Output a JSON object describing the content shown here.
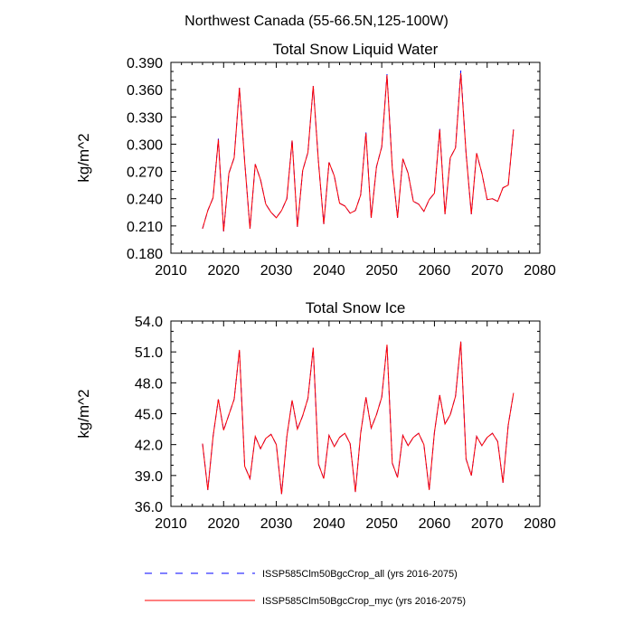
{
  "suptitle": "Northwest Canada (55-66.5N,125-100W)",
  "legend": [
    {
      "label": "ISSP585Clm50BgcCrop_all (yrs 2016-2075)",
      "color": "#0000ff",
      "dash": true
    },
    {
      "label": "ISSP585Clm50BgcCrop_myc (yrs 2016-2075)",
      "color": "#ff0000",
      "dash": false
    }
  ],
  "chart_data": [
    {
      "type": "line",
      "title": "Total Snow Liquid Water",
      "xlabel": "",
      "ylabel": "kg/m^2",
      "xlim": [
        2010,
        2080
      ],
      "ylim": [
        0.18,
        0.39
      ],
      "xticks": [
        "2010",
        "2020",
        "2030",
        "2040",
        "2050",
        "2060",
        "2070",
        "2080"
      ],
      "yticks": [
        "0.180",
        "0.210",
        "0.240",
        "0.270",
        "0.300",
        "0.330",
        "0.360",
        "0.390"
      ],
      "x": [
        2016,
        2017,
        2018,
        2019,
        2020,
        2021,
        2022,
        2023,
        2024,
        2025,
        2026,
        2027,
        2028,
        2029,
        2030,
        2031,
        2032,
        2033,
        2034,
        2035,
        2036,
        2037,
        2038,
        2039,
        2040,
        2041,
        2042,
        2043,
        2044,
        2045,
        2046,
        2047,
        2048,
        2049,
        2050,
        2051,
        2052,
        2053,
        2054,
        2055,
        2056,
        2057,
        2058,
        2059,
        2060,
        2061,
        2062,
        2063,
        2064,
        2065,
        2066,
        2067,
        2068,
        2069,
        2070,
        2071,
        2072,
        2073,
        2074,
        2075
      ],
      "series": [
        {
          "name": "ISSP585Clm50BgcCrop_all (yrs 2016-2075)",
          "color": "#0000ff",
          "dash": true,
          "values": [
            0.207,
            0.227,
            0.241,
            0.306,
            0.204,
            0.268,
            0.285,
            0.362,
            0.281,
            0.207,
            0.278,
            0.261,
            0.234,
            0.225,
            0.219,
            0.227,
            0.24,
            0.305,
            0.209,
            0.271,
            0.291,
            0.364,
            0.28,
            0.212,
            0.28,
            0.265,
            0.235,
            0.232,
            0.224,
            0.227,
            0.244,
            0.313,
            0.219,
            0.275,
            0.297,
            0.377,
            0.274,
            0.219,
            0.284,
            0.268,
            0.237,
            0.234,
            0.226,
            0.239,
            0.246,
            0.317,
            0.223,
            0.285,
            0.296,
            0.381,
            0.29,
            0.223,
            0.29,
            0.268,
            0.239,
            0.24,
            0.237,
            0.252,
            0.255,
            0.316
          ]
        },
        {
          "name": "ISSP585Clm50BgcCrop_myc (yrs 2016-2075)",
          "color": "#ff0000",
          "dash": false,
          "values": [
            0.207,
            0.227,
            0.241,
            0.305,
            0.204,
            0.268,
            0.285,
            0.362,
            0.28,
            0.207,
            0.278,
            0.261,
            0.234,
            0.225,
            0.219,
            0.227,
            0.24,
            0.304,
            0.209,
            0.271,
            0.291,
            0.364,
            0.28,
            0.212,
            0.28,
            0.265,
            0.235,
            0.232,
            0.224,
            0.227,
            0.244,
            0.312,
            0.219,
            0.275,
            0.297,
            0.376,
            0.274,
            0.219,
            0.284,
            0.268,
            0.237,
            0.234,
            0.226,
            0.239,
            0.246,
            0.316,
            0.223,
            0.285,
            0.296,
            0.378,
            0.29,
            0.223,
            0.29,
            0.268,
            0.239,
            0.24,
            0.237,
            0.252,
            0.255,
            0.316
          ]
        }
      ]
    },
    {
      "type": "line",
      "title": "Total Snow Ice",
      "xlabel": "",
      "ylabel": "kg/m^2",
      "xlim": [
        2010,
        2080
      ],
      "ylim": [
        36.0,
        54.0
      ],
      "xticks": [
        "2010",
        "2020",
        "2030",
        "2040",
        "2050",
        "2060",
        "2070",
        "2080"
      ],
      "yticks": [
        "36.0",
        "39.0",
        "42.0",
        "45.0",
        "48.0",
        "51.0",
        "54.0"
      ],
      "x": [
        2016,
        2017,
        2018,
        2019,
        2020,
        2021,
        2022,
        2023,
        2024,
        2025,
        2026,
        2027,
        2028,
        2029,
        2030,
        2031,
        2032,
        2033,
        2034,
        2035,
        2036,
        2037,
        2038,
        2039,
        2040,
        2041,
        2042,
        2043,
        2044,
        2045,
        2046,
        2047,
        2048,
        2049,
        2050,
        2051,
        2052,
        2053,
        2054,
        2055,
        2056,
        2057,
        2058,
        2059,
        2060,
        2061,
        2062,
        2063,
        2064,
        2065,
        2066,
        2067,
        2068,
        2069,
        2070,
        2071,
        2072,
        2073,
        2074,
        2075
      ],
      "series": [
        {
          "name": "ISSP585Clm50BgcCrop_all (yrs 2016-2075)",
          "color": "#0000ff",
          "dash": true,
          "values": [
            42.1,
            37.6,
            42.8,
            46.4,
            43.4,
            44.9,
            46.4,
            51.2,
            39.9,
            38.7,
            42.8,
            41.6,
            42.6,
            43.0,
            42.0,
            37.2,
            42.8,
            46.3,
            43.5,
            44.8,
            46.5,
            51.4,
            40.1,
            38.7,
            42.9,
            41.8,
            42.7,
            43.1,
            42.1,
            37.4,
            43.1,
            46.6,
            43.6,
            44.9,
            46.6,
            51.7,
            40.2,
            38.8,
            42.9,
            41.9,
            42.7,
            43.1,
            42.0,
            37.6,
            43.2,
            46.8,
            44.0,
            44.9,
            46.7,
            52.0,
            40.6,
            39.0,
            42.8,
            41.9,
            42.7,
            43.1,
            42.3,
            38.3,
            43.9,
            47.0
          ]
        },
        {
          "name": "ISSP585Clm50BgcCrop_myc (yrs 2016-2075)",
          "color": "#ff0000",
          "dash": false,
          "values": [
            42.1,
            37.6,
            42.8,
            46.4,
            43.4,
            44.9,
            46.4,
            51.2,
            39.9,
            38.7,
            42.8,
            41.6,
            42.6,
            43.0,
            42.0,
            37.2,
            42.8,
            46.3,
            43.5,
            44.8,
            46.5,
            51.4,
            40.1,
            38.7,
            42.9,
            41.8,
            42.7,
            43.1,
            42.1,
            37.4,
            43.1,
            46.6,
            43.6,
            44.9,
            46.6,
            51.7,
            40.2,
            38.8,
            42.9,
            41.9,
            42.7,
            43.1,
            42.0,
            37.6,
            43.2,
            46.8,
            44.0,
            44.9,
            46.7,
            52.0,
            40.6,
            39.0,
            42.8,
            41.9,
            42.7,
            43.1,
            42.3,
            38.3,
            43.9,
            47.0
          ]
        }
      ]
    }
  ]
}
